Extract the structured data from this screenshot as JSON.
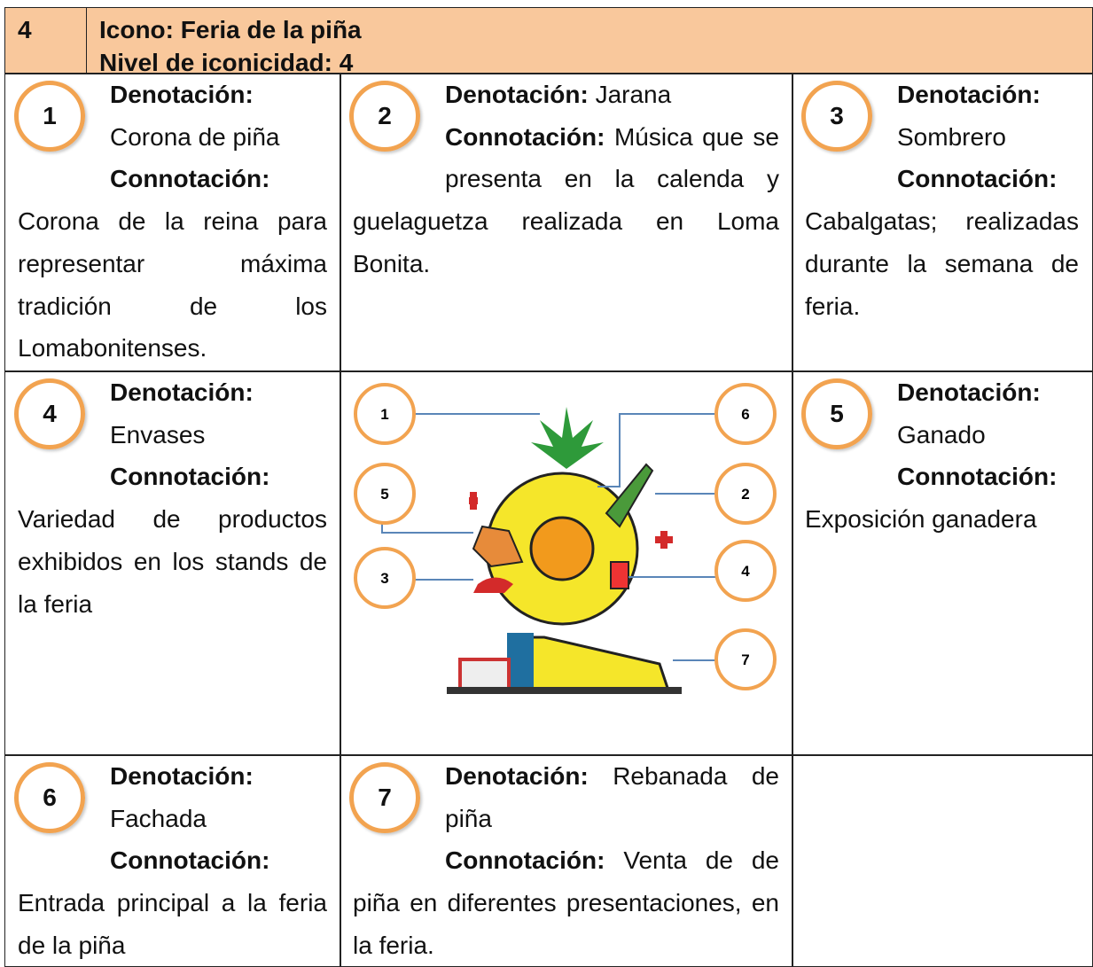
{
  "header": {
    "number": "4",
    "title": "Icono: Feria de la piña",
    "level": "Nivel de iconicidad: 4"
  },
  "cells": [
    {
      "number": "1",
      "denotation_label": "Denotación:",
      "denotation": "Corona de piña",
      "connotation_label": "Connotación:",
      "connotation": "Corona de la reina para representar máxima tradición de los Lomabonitenses."
    },
    {
      "number": "2",
      "denotation_label": "Denotación:",
      "denotation": "Jarana",
      "connotation_label": "Connotación:",
      "connotation": "Música que se presenta en la calenda y guelaguetza realizada en Loma Bonita."
    },
    {
      "number": "3",
      "denotation_label": "Denotación:",
      "denotation": "Sombrero",
      "connotation_label": "Connotación:",
      "connotation": "Cabalgatas; realizadas durante la semana de feria."
    },
    {
      "number": "4",
      "denotation_label": "Denotación:",
      "denotation": "Envases",
      "connotation_label": "Connotación:",
      "connotation": "Variedad de productos exhibidos en los stands de la feria"
    },
    {
      "number": "5",
      "denotation_label": "Denotación:",
      "denotation": "Ganado",
      "connotation_label": "Connotación:",
      "connotation": "Exposición ganadera"
    },
    {
      "number": "6",
      "denotation_label": "Denotación:",
      "denotation": "Fachada",
      "connotation_label": "Connotación:",
      "connotation": "Entrada principal a la feria de la piña"
    },
    {
      "number": "7",
      "denotation_label": "Denotación:",
      "denotation": "Rebanada de piña",
      "connotation_label": "Connotación:",
      "connotation": "Venta de de piña en diferentes presentaciones, en la feria."
    }
  ],
  "diagram": {
    "callouts": [
      "1",
      "6",
      "5",
      "2",
      "3",
      "4",
      "7"
    ]
  }
}
